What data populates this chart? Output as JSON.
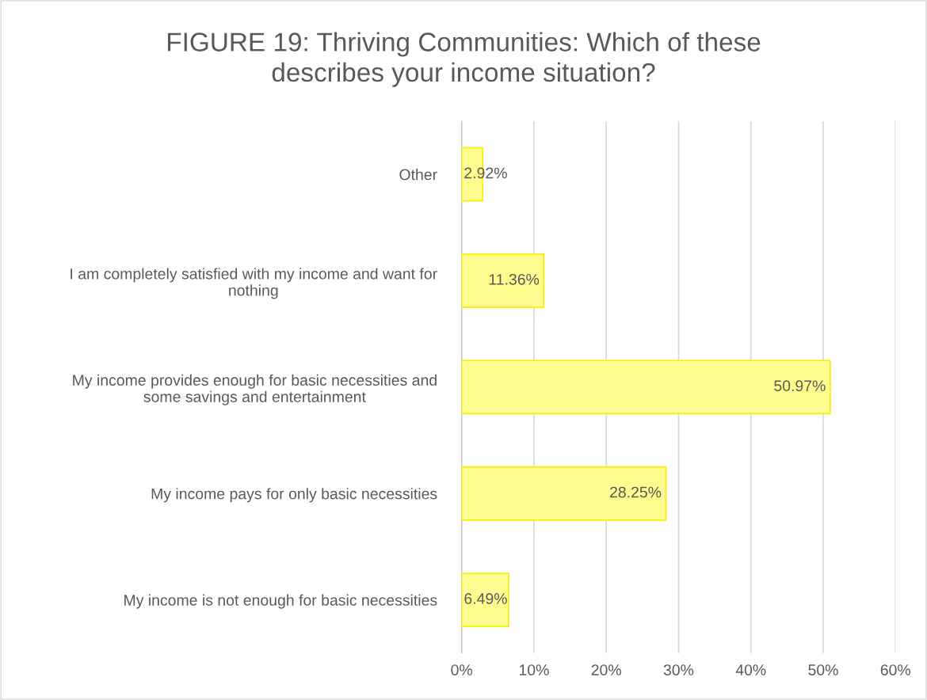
{
  "chart_data": {
    "type": "bar",
    "orientation": "horizontal",
    "title": "FIGURE 19: Thriving Communities: Which of these\ndescribes your income situation?",
    "categories": [
      "Other",
      "I am completely satisfied with my income and want for\nnothing",
      "My income provides enough for basic necessities and\nsome savings and entertainment",
      "My income pays for only basic necessities",
      "My income is not enough for basic necessities"
    ],
    "values": [
      2.92,
      11.36,
      50.97,
      28.25,
      6.49
    ],
    "value_labels": [
      "2.92%",
      "11.36%",
      "50.97%",
      "28.25%",
      "6.49%"
    ],
    "color": "#fefc8e",
    "xlim": [
      0,
      60
    ],
    "xticks": [
      {
        "value": 0,
        "label": "0%"
      },
      {
        "value": 10,
        "label": "10%"
      },
      {
        "value": 20,
        "label": "20%"
      },
      {
        "value": 30,
        "label": "30%"
      },
      {
        "value": 40,
        "label": "40%"
      },
      {
        "value": 50,
        "label": "50%"
      },
      {
        "value": 60,
        "label": "60%"
      }
    ],
    "grid": "x",
    "legend": false
  }
}
